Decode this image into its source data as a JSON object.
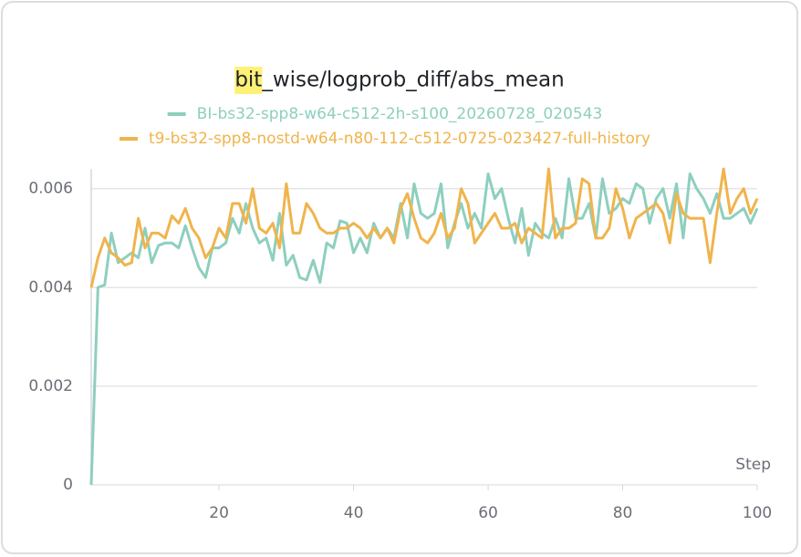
{
  "chart_data": {
    "type": "line",
    "title": "bit_wise/logprob_diff/abs_mean",
    "highlight": "bit",
    "x_label": "Step",
    "x": [
      1,
      2,
      3,
      4,
      5,
      6,
      7,
      8,
      9,
      10,
      11,
      12,
      13,
      14,
      15,
      16,
      17,
      18,
      19,
      20,
      21,
      22,
      23,
      24,
      25,
      26,
      27,
      28,
      29,
      30,
      31,
      32,
      33,
      34,
      35,
      36,
      37,
      38,
      39,
      40,
      41,
      42,
      43,
      44,
      45,
      46,
      47,
      48,
      49,
      50,
      51,
      52,
      53,
      54,
      55,
      56,
      57,
      58,
      59,
      60,
      61,
      62,
      63,
      64,
      65,
      66,
      67,
      68,
      69,
      70,
      71,
      72,
      73,
      74,
      75,
      76,
      77,
      78,
      79,
      80,
      81,
      82,
      83,
      84,
      85,
      86,
      87,
      88,
      89,
      90,
      91,
      92,
      93,
      94,
      95,
      96,
      97,
      98,
      99,
      100
    ],
    "series": [
      {
        "name": "BI-bs32-spp8-w64-c512-2h-s100_20260728_020543",
        "color": "#8ecfbf",
        "values": [
          0,
          0.004,
          0.00405,
          0.0051,
          0.0045,
          0.0046,
          0.0047,
          0.0046,
          0.0052,
          0.0045,
          0.00485,
          0.0049,
          0.0049,
          0.0048,
          0.00525,
          0.0048,
          0.0044,
          0.0042,
          0.0048,
          0.0048,
          0.0049,
          0.0054,
          0.0051,
          0.0057,
          0.0052,
          0.0049,
          0.005,
          0.00455,
          0.0055,
          0.00445,
          0.00465,
          0.0042,
          0.00415,
          0.00455,
          0.0041,
          0.0049,
          0.0048,
          0.00535,
          0.0053,
          0.0047,
          0.005,
          0.0047,
          0.0053,
          0.005,
          0.0052,
          0.005,
          0.0057,
          0.005,
          0.0061,
          0.0055,
          0.0054,
          0.0055,
          0.0061,
          0.0048,
          0.0053,
          0.0057,
          0.0052,
          0.0055,
          0.0052,
          0.0063,
          0.0058,
          0.006,
          0.0054,
          0.0049,
          0.0056,
          0.00465,
          0.0053,
          0.0051,
          0.005,
          0.0054,
          0.005,
          0.0062,
          0.0054,
          0.0054,
          0.0057,
          0.005,
          0.0062,
          0.0055,
          0.0056,
          0.0058,
          0.0057,
          0.0061,
          0.006,
          0.0053,
          0.0058,
          0.006,
          0.0054,
          0.0061,
          0.005,
          0.0063,
          0.006,
          0.0058,
          0.0055,
          0.0059,
          0.0054,
          0.0054,
          0.0055,
          0.0056,
          0.0053,
          0.0056
        ]
      },
      {
        "name": "t9-bs32-spp8-nostd-w64-n80-112-c512-0725-023427-full-history",
        "color": "#f0b44c",
        "values": [
          0.004,
          0.0046,
          0.005,
          0.0047,
          0.0046,
          0.00445,
          0.0045,
          0.0054,
          0.0048,
          0.0051,
          0.0051,
          0.005,
          0.00545,
          0.0053,
          0.0056,
          0.0052,
          0.005,
          0.0046,
          0.0048,
          0.0052,
          0.005,
          0.0057,
          0.0057,
          0.0053,
          0.006,
          0.0052,
          0.0051,
          0.0053,
          0.0048,
          0.0061,
          0.0051,
          0.0051,
          0.0057,
          0.0055,
          0.0052,
          0.0051,
          0.0051,
          0.0052,
          0.0052,
          0.0053,
          0.0052,
          0.005,
          0.0052,
          0.005,
          0.0052,
          0.0049,
          0.0056,
          0.0059,
          0.0054,
          0.005,
          0.0049,
          0.0051,
          0.0055,
          0.005,
          0.0052,
          0.006,
          0.0057,
          0.0049,
          0.0051,
          0.0053,
          0.0055,
          0.0052,
          0.0052,
          0.0053,
          0.0049,
          0.0052,
          0.0051,
          0.005,
          0.0064,
          0.005,
          0.0052,
          0.0052,
          0.0053,
          0.0062,
          0.0061,
          0.005,
          0.005,
          0.0052,
          0.006,
          0.0056,
          0.005,
          0.0054,
          0.0055,
          0.0056,
          0.0057,
          0.0055,
          0.0049,
          0.0059,
          0.0055,
          0.0054,
          0.0054,
          0.0054,
          0.0045,
          0.0055,
          0.0064,
          0.0055,
          0.0058,
          0.006,
          0.0055,
          0.0058
        ]
      }
    ],
    "xlim": [
      1,
      100
    ],
    "xticks": [
      20,
      40,
      60,
      80,
      100
    ],
    "ylim": [
      0,
      0.0064
    ],
    "yticks": [
      0,
      0.002,
      0.004,
      0.006
    ],
    "grid": true
  }
}
